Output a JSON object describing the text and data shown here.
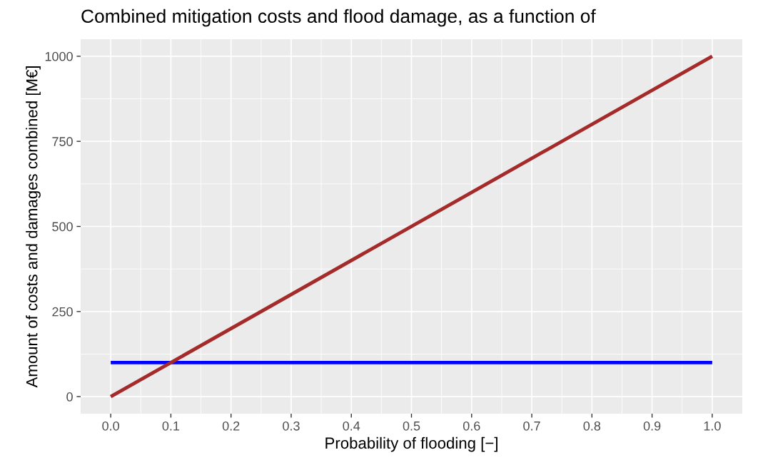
{
  "chart_data": {
    "type": "line",
    "title": "Combined mitigation costs and flood damage, as a function of",
    "xlabel": "Probability of flooding [−]",
    "ylabel": "Amount of costs and damages combined [M€]",
    "x": [
      0,
      1
    ],
    "series": [
      {
        "color": "#0000ff",
        "values": [
          100,
          100
        ]
      },
      {
        "color": "#a52a2a",
        "values": [
          0,
          1000
        ]
      }
    ],
    "xlim": [
      -0.05,
      1.05
    ],
    "xticks": [
      {
        "value": 0,
        "label": "0.0"
      },
      0.1,
      0.2,
      0.3,
      0.4,
      0.5,
      0.6,
      0.7,
      0.8,
      0.9,
      {
        "value": 1,
        "label": "1.0"
      }
    ],
    "ylim": [
      -50,
      1050
    ],
    "yticks": [
      0,
      250,
      500,
      750,
      1000
    ],
    "grid": true,
    "marker": "none",
    "line_style": "solid"
  }
}
